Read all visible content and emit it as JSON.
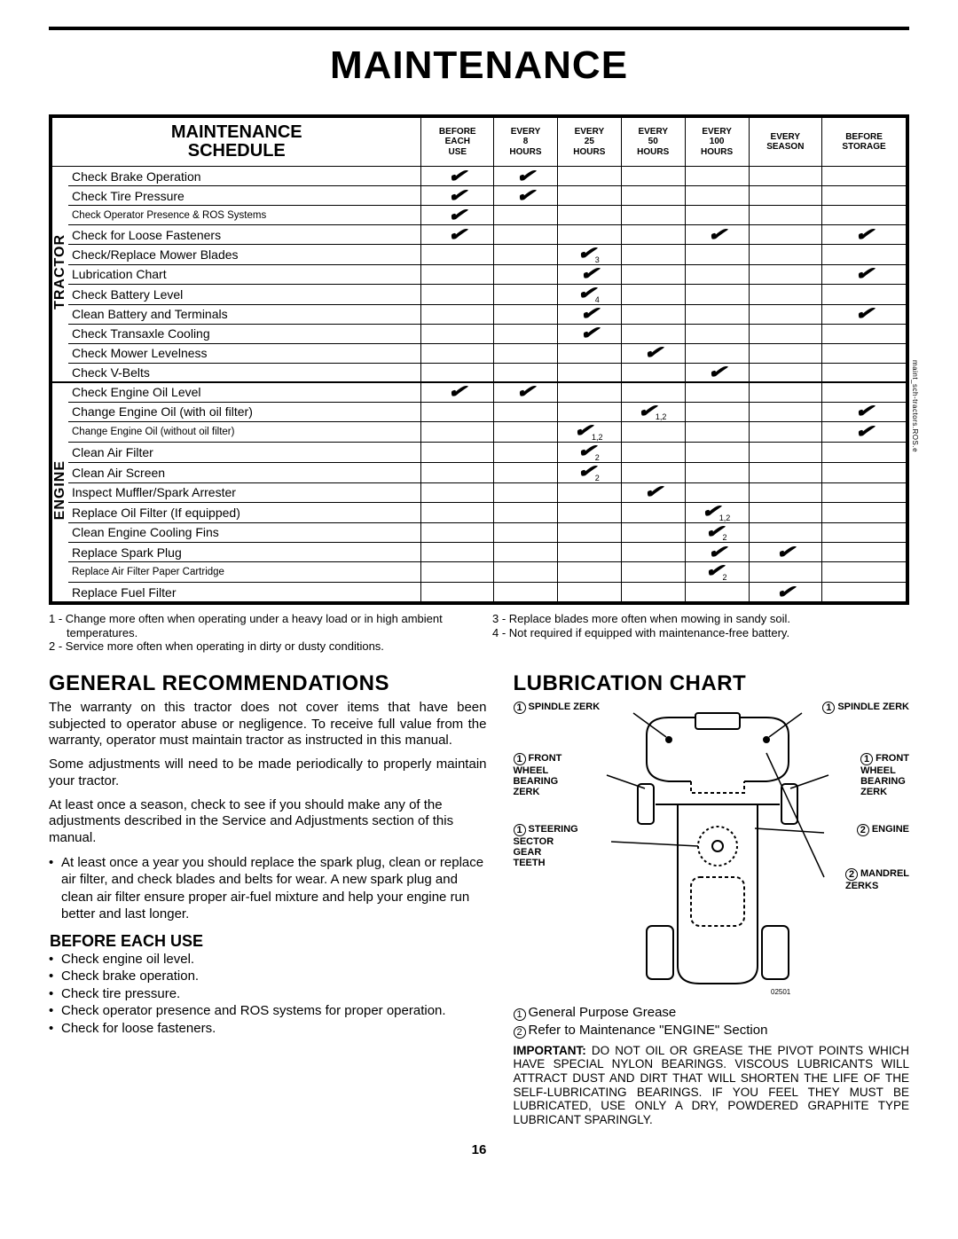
{
  "page": {
    "title": "Maintenance",
    "number": "16"
  },
  "schedule": {
    "heading_l1": "Maintenance",
    "heading_l2": "Schedule",
    "columns": [
      {
        "l1": "Before",
        "l2": "Each",
        "l3": "Use"
      },
      {
        "l1": "Every",
        "l2": "8",
        "l3": "Hours"
      },
      {
        "l1": "Every",
        "l2": "25",
        "l3": "Hours"
      },
      {
        "l1": "Every",
        "l2": "50",
        "l3": "Hours"
      },
      {
        "l1": "Every",
        "l2": "100",
        "l3": "Hours"
      },
      {
        "l1": "Every",
        "l2": "Season",
        "l3": ""
      },
      {
        "l1": "Before",
        "l2": "Storage",
        "l3": ""
      }
    ],
    "cat1": "TRACTOR",
    "cat2": "ENGINE",
    "rows_tractor": [
      {
        "label": "Check Brake Operation",
        "marks": [
          "",
          "",
          "",
          "",
          "",
          "",
          ""
        ],
        "cols": [
          1,
          1,
          0,
          0,
          0,
          0,
          0
        ],
        "subs": [
          "",
          "",
          "",
          "",
          "",
          "",
          ""
        ]
      },
      {
        "label": "Check Tire Pressure",
        "cols": [
          1,
          1,
          0,
          0,
          0,
          0,
          0
        ],
        "subs": [
          "",
          "",
          "",
          "",
          "",
          "",
          ""
        ]
      },
      {
        "label": "Check Operator Presence & ROS Systems",
        "small": true,
        "cols": [
          1,
          0,
          0,
          0,
          0,
          0,
          0
        ],
        "subs": [
          "",
          "",
          "",
          "",
          "",
          "",
          ""
        ]
      },
      {
        "label": "Check for Loose Fasteners",
        "cols": [
          1,
          0,
          0,
          0,
          1,
          0,
          1
        ],
        "subs": [
          "",
          "",
          "",
          "",
          "",
          "",
          ""
        ]
      },
      {
        "label": "Check/Replace Mower Blades",
        "cols": [
          0,
          0,
          1,
          0,
          0,
          0,
          0
        ],
        "subs": [
          "",
          "",
          "3",
          "",
          "",
          "",
          ""
        ]
      },
      {
        "label": "Lubrication Chart",
        "cols": [
          0,
          0,
          1,
          0,
          0,
          0,
          1
        ],
        "subs": [
          "",
          "",
          "",
          "",
          "",
          "",
          ""
        ]
      },
      {
        "label": "Check Battery Level",
        "cols": [
          0,
          0,
          1,
          0,
          0,
          0,
          0
        ],
        "subs": [
          "",
          "",
          "4",
          "",
          "",
          "",
          ""
        ]
      },
      {
        "label": "Clean Battery and Terminals",
        "cols": [
          0,
          0,
          1,
          0,
          0,
          0,
          1
        ],
        "subs": [
          "",
          "",
          "",
          "",
          "",
          "",
          ""
        ]
      },
      {
        "label": "Check Transaxle Cooling",
        "cols": [
          0,
          0,
          1,
          0,
          0,
          0,
          0
        ],
        "subs": [
          "",
          "",
          "",
          "",
          "",
          "",
          ""
        ]
      },
      {
        "label": "Check Mower Levelness",
        "cols": [
          0,
          0,
          0,
          1,
          0,
          0,
          0
        ],
        "subs": [
          "",
          "",
          "",
          "",
          "",
          "",
          ""
        ]
      },
      {
        "label": "Check V-Belts",
        "cols": [
          0,
          0,
          0,
          0,
          1,
          0,
          0
        ],
        "subs": [
          "",
          "",
          "",
          "",
          "",
          "",
          ""
        ]
      }
    ],
    "rows_engine": [
      {
        "label": "Check Engine Oil Level",
        "cols": [
          1,
          1,
          0,
          0,
          0,
          0,
          0
        ],
        "subs": [
          "",
          "",
          "",
          "",
          "",
          "",
          ""
        ]
      },
      {
        "label": "Change Engine Oil (with oil filter)",
        "cols": [
          0,
          0,
          0,
          1,
          0,
          0,
          1
        ],
        "subs": [
          "",
          "",
          "",
          "1,2",
          "",
          "",
          ""
        ]
      },
      {
        "label": "Change Engine Oil (without oil filter)",
        "small": true,
        "cols": [
          0,
          0,
          1,
          0,
          0,
          0,
          1
        ],
        "subs": [
          "",
          "",
          "1,2",
          "",
          "",
          "",
          ""
        ]
      },
      {
        "label": "Clean Air Filter",
        "cols": [
          0,
          0,
          1,
          0,
          0,
          0,
          0
        ],
        "subs": [
          "",
          "",
          "2",
          "",
          "",
          "",
          ""
        ]
      },
      {
        "label": "Clean Air Screen",
        "cols": [
          0,
          0,
          1,
          0,
          0,
          0,
          0
        ],
        "subs": [
          "",
          "",
          "2",
          "",
          "",
          "",
          ""
        ]
      },
      {
        "label": "Inspect Muffler/Spark Arrester",
        "cols": [
          0,
          0,
          0,
          1,
          0,
          0,
          0
        ],
        "subs": [
          "",
          "",
          "",
          "",
          "",
          "",
          ""
        ]
      },
      {
        "label": "Replace Oil Filter (If equipped)",
        "cols": [
          0,
          0,
          0,
          0,
          1,
          0,
          0
        ],
        "subs": [
          "",
          "",
          "",
          "",
          "1,2",
          "",
          ""
        ]
      },
      {
        "label": "Clean Engine Cooling Fins",
        "cols": [
          0,
          0,
          0,
          0,
          1,
          0,
          0
        ],
        "subs": [
          "",
          "",
          "",
          "",
          "2",
          "",
          ""
        ]
      },
      {
        "label": "Replace Spark Plug",
        "cols": [
          0,
          0,
          0,
          0,
          1,
          1,
          0
        ],
        "subs": [
          "",
          "",
          "",
          "",
          "",
          "",
          ""
        ]
      },
      {
        "label": "Replace Air Filter Paper Cartridge",
        "small": true,
        "cols": [
          0,
          0,
          0,
          0,
          1,
          0,
          0
        ],
        "subs": [
          "",
          "",
          "",
          "",
          "2",
          "",
          ""
        ]
      },
      {
        "label": "Replace Fuel Filter",
        "cols": [
          0,
          0,
          0,
          0,
          0,
          1,
          0
        ],
        "subs": [
          "",
          "",
          "",
          "",
          "",
          "",
          ""
        ]
      }
    ],
    "side_note": "maint_sch-tractors.ROS.e"
  },
  "footnotes": {
    "left": [
      "1 - Change more often when operating under a heavy load or in high ambient temperatures.",
      "2 - Service more often when operating in dirty or dusty conditions."
    ],
    "right": [
      "3 - Replace blades more often when mowing in sandy soil.",
      "4 - Not required if equipped with maintenance-free battery."
    ]
  },
  "general": {
    "heading": "General Recommendations",
    "p1": "The warranty on this tractor does not cover items that have been subjected to operator abuse or negligence. To receive full value from the warranty, operator must maintain tractor as instructed in this manual.",
    "p2": "Some adjustments will need to be made periodically to properly maintain your tractor.",
    "p3": "At least once a season, check to see if you should make any of the adjustments described in the Service and Adjustments section of this manual.",
    "bullet1": "At least once a year you should replace the spark plug, clean or replace air filter, and check blades and belts for wear.  A new spark plug and clean air filter ensure proper air-fuel mixture and help your engine run better and last longer.",
    "before_heading": "Before Each Use",
    "before_items": [
      "Check engine oil level.",
      "Check brake operation.",
      "Check tire pressure.",
      "Check operator presence and ROS systems for proper operation.",
      "Check for loose fasteners."
    ]
  },
  "lube": {
    "heading": "Lubrication Chart",
    "labels": {
      "spindle_l": "SPINDLE ZERK",
      "spindle_r": "SPINDLE ZERK",
      "front_wheel_l": "FRONT\nWHEEL\nBEARING\nZERK",
      "front_wheel_r": "FRONT\nWHEEL\nBEARING\nZERK",
      "steering": "STEERING\nSECTOR\nGEAR\nTEETH",
      "engine": "ENGINE",
      "mandrel": "MANDREL\nZERKS",
      "diagram_num": "02501"
    },
    "legend": {
      "l1": "General Purpose Grease",
      "l2": "Refer to Maintenance \"ENGINE\" Section"
    },
    "important": "DO NOT OIL OR GREASE THE PIVOT POINTS WHICH HAVE SPECIAL NYLON BEARINGS.  VISCOUS LUBRICANTS WILL ATTRACT DUST AND DIRT THAT WILL SHORTEN THE LIFE OF THE SELF-LUBRICATING BEARINGS.  IF YOU FEEL THEY MUST BE LUBRICATED, USE ONLY A DRY, POWDERED GRAPHITE TYPE LUBRICANT SPARINGLY.",
    "important_label": "IMPORTANT:"
  }
}
